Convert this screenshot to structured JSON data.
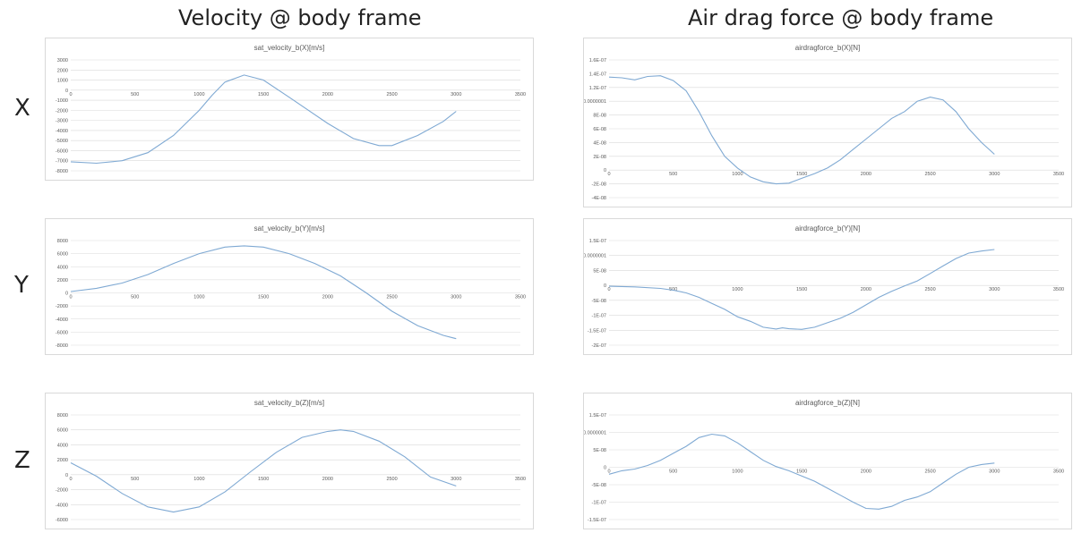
{
  "headings": {
    "left": "Velocity @ body frame",
    "right": "Air drag force @ body frame"
  },
  "row_labels": [
    "X",
    "Y",
    "Z"
  ],
  "colors": {
    "series": "#7fa9d3",
    "grid": "#d9d9d9",
    "border": "#d9d9d9"
  },
  "chart_data": [
    {
      "type": "line",
      "title": "sat_velocity_b(X)[m/s]",
      "xlim": [
        0,
        3500
      ],
      "ylim": [
        -8000,
        3000
      ],
      "xticks": [
        0,
        500,
        1000,
        1500,
        2000,
        2500,
        3000,
        3500
      ],
      "xtick_labels": [
        "0",
        "500",
        "1000",
        "1500",
        "2000",
        "2500",
        "3000",
        "3500"
      ],
      "yticks": [
        3000,
        2000,
        1000,
        0,
        -1000,
        -2000,
        -3000,
        -4000,
        -5000,
        -6000,
        -7000,
        -8000
      ],
      "ytick_labels": [
        "3000",
        "2000",
        "1000",
        "0",
        "-1000",
        "-2000",
        "-3000",
        "-4000",
        "-5000",
        "-6000",
        "-7000",
        "-8000"
      ],
      "x": [
        0,
        200,
        400,
        600,
        800,
        1000,
        1100,
        1200,
        1350,
        1500,
        1700,
        2000,
        2200,
        2400,
        2500,
        2700,
        2900,
        3000
      ],
      "y": [
        -7100,
        -7250,
        -7000,
        -6200,
        -4500,
        -2000,
        -500,
        800,
        1500,
        1000,
        -700,
        -3300,
        -4800,
        -5500,
        -5500,
        -4500,
        -3100,
        -2100
      ]
    },
    {
      "type": "line",
      "title": "airdragforce_b(X)[N]",
      "xlim": [
        0,
        3500
      ],
      "ylim": [
        -4e-08,
        1.6e-07
      ],
      "xticks": [
        0,
        500,
        1000,
        1500,
        2000,
        2500,
        3000,
        3500
      ],
      "xtick_labels": [
        "0",
        "500",
        "1000",
        "1500",
        "2000",
        "2500",
        "3000",
        "3500"
      ],
      "yticks": [
        1.6e-07,
        1.4e-07,
        1.2e-07,
        1e-07,
        8e-08,
        6e-08,
        4e-08,
        2e-08,
        0,
        -2e-08,
        -4e-08
      ],
      "ytick_labels": [
        "1.6E-07",
        "1.4E-07",
        "1.2E-07",
        "0.0000001",
        "8E-08",
        "6E-08",
        "4E-08",
        "2E-08",
        "0",
        "-2E-08",
        "-4E-08"
      ],
      "x": [
        0,
        100,
        200,
        300,
        400,
        500,
        600,
        700,
        800,
        900,
        1000,
        1100,
        1200,
        1300,
        1400,
        1500,
        1600,
        1700,
        1800,
        1900,
        2000,
        2100,
        2200,
        2300,
        2400,
        2500,
        2600,
        2700,
        2800,
        2900,
        3000
      ],
      "y": [
        1.35e-07,
        1.34e-07,
        1.31e-07,
        1.36e-07,
        1.37e-07,
        1.3e-07,
        1.15e-07,
        8.5e-08,
        5e-08,
        2e-08,
        3e-09,
        -1e-08,
        -1.7e-08,
        -2e-08,
        -1.9e-08,
        -1.2e-08,
        -5e-09,
        3e-09,
        1.5e-08,
        3e-08,
        4.5e-08,
        6e-08,
        7.5e-08,
        8.5e-08,
        1e-07,
        1.06e-07,
        1.02e-07,
        8.5e-08,
        6e-08,
        4e-08,
        2.3e-08
      ]
    },
    {
      "type": "line",
      "title": "sat_velocity_b(Y)[m/s]",
      "xlim": [
        0,
        3500
      ],
      "ylim": [
        -8000,
        8000
      ],
      "xticks": [
        0,
        500,
        1000,
        1500,
        2000,
        2500,
        3000,
        3500
      ],
      "xtick_labels": [
        "0",
        "500",
        "1000",
        "1500",
        "2000",
        "2500",
        "3000",
        "3500"
      ],
      "yticks": [
        8000,
        6000,
        4000,
        2000,
        0,
        -2000,
        -4000,
        -6000,
        -8000
      ],
      "ytick_labels": [
        "8000",
        "6000",
        "4000",
        "2000",
        "0",
        "-2000",
        "-4000",
        "-6000",
        "-8000"
      ],
      "x": [
        0,
        200,
        400,
        600,
        800,
        1000,
        1200,
        1350,
        1500,
        1700,
        1900,
        2100,
        2300,
        2500,
        2700,
        2900,
        3000
      ],
      "y": [
        200,
        700,
        1500,
        2800,
        4500,
        6000,
        7000,
        7200,
        7000,
        6000,
        4500,
        2600,
        0,
        -2800,
        -5000,
        -6500,
        -7000
      ]
    },
    {
      "type": "line",
      "title": "airdragforce_b(Y)[N]",
      "xlim": [
        0,
        3500
      ],
      "ylim": [
        -2e-07,
        1.5e-07
      ],
      "xticks": [
        0,
        500,
        1000,
        1500,
        2000,
        2500,
        3000,
        3500
      ],
      "xtick_labels": [
        "0",
        "500",
        "1000",
        "1500",
        "2000",
        "2500",
        "3000",
        "3500"
      ],
      "yticks": [
        1.5e-07,
        1e-07,
        5e-08,
        0,
        -5e-08,
        -1e-07,
        -1.5e-07,
        -2e-07
      ],
      "ytick_labels": [
        "1.5E-07",
        "0.0000001",
        "5E-08",
        "0",
        "-5E-08",
        "-1E-07",
        "-1.5E-07",
        "-2E-07"
      ],
      "x": [
        0,
        200,
        400,
        500,
        600,
        700,
        800,
        900,
        1000,
        1100,
        1200,
        1300,
        1350,
        1400,
        1500,
        1600,
        1700,
        1800,
        1900,
        2000,
        2100,
        2200,
        2300,
        2400,
        2500,
        2600,
        2700,
        2800,
        2900,
        3000
      ],
      "y": [
        -3e-09,
        -5e-09,
        -1e-08,
        -1.6e-08,
        -2.5e-08,
        -4e-08,
        -6e-08,
        -8e-08,
        -1.05e-07,
        -1.2e-07,
        -1.4e-07,
        -1.46e-07,
        -1.42e-07,
        -1.45e-07,
        -1.47e-07,
        -1.4e-07,
        -1.25e-07,
        -1.1e-07,
        -9e-08,
        -6.5e-08,
        -4e-08,
        -2e-08,
        -2e-09,
        1.5e-08,
        4e-08,
        6.5e-08,
        9e-08,
        1.08e-07,
        1.15e-07,
        1.2e-07
      ]
    },
    {
      "type": "line",
      "title": "sat_velocity_b(Z)[m/s]",
      "xlim": [
        0,
        3500
      ],
      "ylim": [
        -6000,
        8000
      ],
      "xticks": [
        0,
        500,
        1000,
        1500,
        2000,
        2500,
        3000,
        3500
      ],
      "xtick_labels": [
        "0",
        "500",
        "1000",
        "1500",
        "2000",
        "2500",
        "3000",
        "3500"
      ],
      "yticks": [
        8000,
        6000,
        4000,
        2000,
        0,
        -2000,
        -4000,
        -6000
      ],
      "ytick_labels": [
        "8000",
        "6000",
        "4000",
        "2000",
        "0",
        "-2000",
        "-4000",
        "-6000"
      ],
      "x": [
        0,
        200,
        400,
        600,
        800,
        1000,
        1200,
        1400,
        1600,
        1800,
        2000,
        2100,
        2200,
        2400,
        2600,
        2800,
        3000
      ],
      "y": [
        1600,
        -200,
        -2500,
        -4300,
        -5000,
        -4300,
        -2300,
        400,
        3000,
        5000,
        5800,
        6000,
        5800,
        4500,
        2400,
        -300,
        -1500
      ]
    },
    {
      "type": "line",
      "title": "airdragforce_b(Z)[N]",
      "xlim": [
        0,
        3500
      ],
      "ylim": [
        -1.5e-07,
        1.5e-07
      ],
      "xticks": [
        0,
        500,
        1000,
        1500,
        2000,
        2500,
        3000,
        3500
      ],
      "xtick_labels": [
        "0",
        "500",
        "1000",
        "1500",
        "2000",
        "2500",
        "3000",
        "3500"
      ],
      "yticks": [
        1.5e-07,
        1e-07,
        5e-08,
        0,
        -5e-08,
        -1e-07,
        -1.5e-07
      ],
      "ytick_labels": [
        "1.5E-07",
        "0.0000001",
        "5E-08",
        "0",
        "-5E-08",
        "-1E-07",
        "-1.5E-07"
      ],
      "x": [
        0,
        100,
        200,
        300,
        400,
        500,
        600,
        700,
        800,
        900,
        1000,
        1100,
        1200,
        1300,
        1400,
        1500,
        1600,
        1700,
        1800,
        1900,
        2000,
        2100,
        2200,
        2300,
        2400,
        2500,
        2600,
        2700,
        2800,
        2900,
        3000
      ],
      "y": [
        -2e-08,
        -1e-08,
        -5e-09,
        5e-09,
        2e-08,
        4e-08,
        6e-08,
        8.5e-08,
        9.5e-08,
        9e-08,
        7e-08,
        4.5e-08,
        2e-08,
        2e-09,
        -1e-08,
        -2.5e-08,
        -4e-08,
        -6e-08,
        -8e-08,
        -1e-07,
        -1.18e-07,
        -1.2e-07,
        -1.12e-07,
        -9.5e-08,
        -8.5e-08,
        -7e-08,
        -4.5e-08,
        -2e-08,
        0,
        8e-09,
        1.2e-08
      ]
    }
  ]
}
